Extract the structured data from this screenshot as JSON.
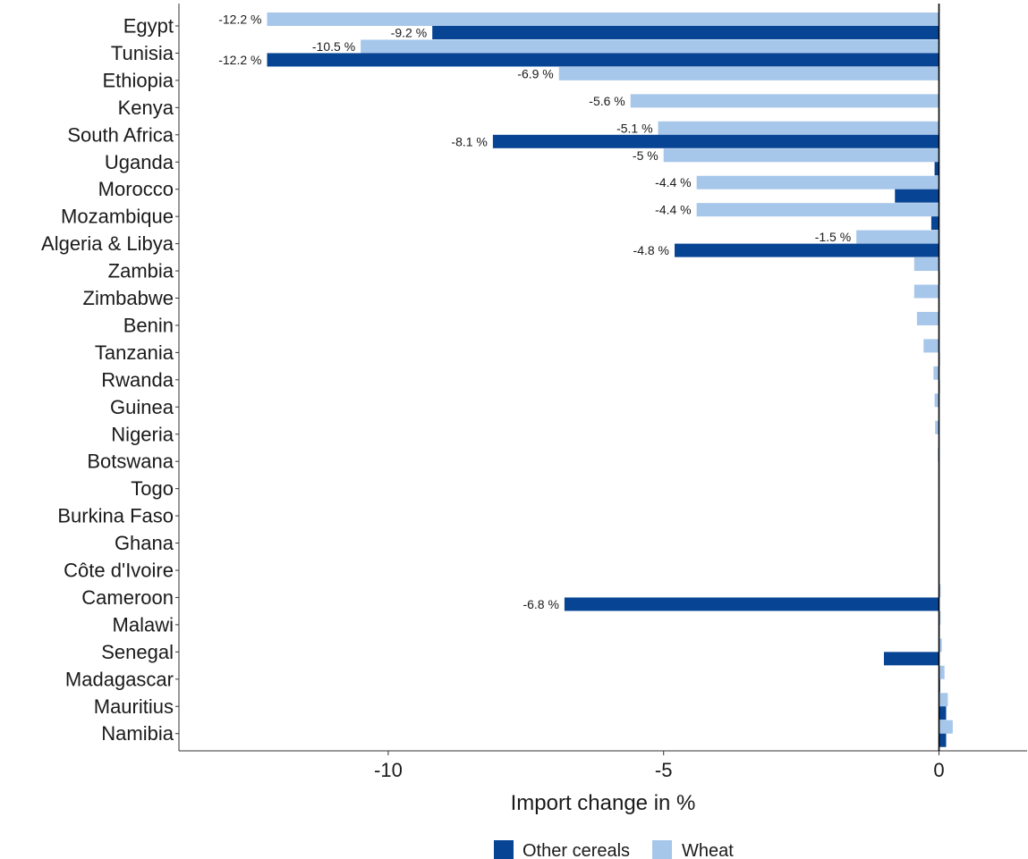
{
  "chart_data": {
    "type": "bar",
    "orientation": "horizontal",
    "title": "",
    "xlabel": "Import change in %",
    "ylabel": "",
    "xlim": [
      -13.8,
      1.6
    ],
    "x_ticks": [
      -10,
      -5,
      0
    ],
    "x_tick_labels": [
      "-10",
      "-5",
      "0"
    ],
    "grid": false,
    "legend_position": "bottom",
    "categories": [
      "Egypt",
      "Tunisia",
      "Ethiopia",
      "Kenya",
      "South Africa",
      "Uganda",
      "Morocco",
      "Mozambique",
      "Algeria & Libya",
      "Zambia",
      "Zimbabwe",
      "Benin",
      "Tanzania",
      "Rwanda",
      "Guinea",
      "Nigeria",
      "Botswana",
      "Togo",
      "Burkina Faso",
      "Ghana",
      "Côte d'Ivoire",
      "Cameroon",
      "Malawi",
      "Senegal",
      "Madagascar",
      "Mauritius",
      "Namibia"
    ],
    "series": [
      {
        "name": "Wheat",
        "color": "#a6c6ea",
        "values": [
          -12.2,
          -10.5,
          -6.9,
          -5.6,
          -5.1,
          -5.0,
          -4.4,
          -4.4,
          -1.5,
          -0.45,
          -0.45,
          -0.4,
          -0.28,
          -0.1,
          -0.08,
          -0.07,
          -0.02,
          -0.01,
          -0.01,
          -0.01,
          -0.01,
          0.03,
          0.03,
          0.05,
          0.1,
          0.16,
          0.25
        ],
        "labels": [
          "-12.2 %",
          "-10.5 %",
          "-6.9 %",
          "-5.6 %",
          "-5.1 %",
          "-5 %",
          "-4.4 %",
          "-4.4 %",
          "-1.5 %",
          "",
          "",
          "",
          "",
          "",
          "",
          "",
          "",
          "",
          "",
          "",
          "",
          "",
          "",
          "",
          "",
          "",
          ""
        ]
      },
      {
        "name": "Other cereals",
        "color": "#074594",
        "values": [
          -9.2,
          -12.2,
          0,
          0,
          -8.1,
          -0.08,
          -0.8,
          -0.14,
          -4.8,
          0.01,
          0,
          0,
          0.01,
          0.01,
          0,
          0,
          0,
          0,
          0,
          0,
          0,
          -6.8,
          0.01,
          -1.0,
          0.02,
          0.13,
          0.13
        ],
        "labels": [
          "-9.2 %",
          "-12.2 %",
          "",
          "",
          "-8.1 %",
          "",
          "",
          "",
          "-4.8 %",
          "",
          "",
          "",
          "",
          "",
          "",
          "",
          "",
          "",
          "",
          "",
          "",
          "-6.8 %",
          "",
          "",
          "",
          "",
          ""
        ]
      }
    ],
    "legend": [
      {
        "name": "Other cereals",
        "color": "#074594"
      },
      {
        "name": "Wheat",
        "color": "#a6c6ea"
      }
    ]
  }
}
